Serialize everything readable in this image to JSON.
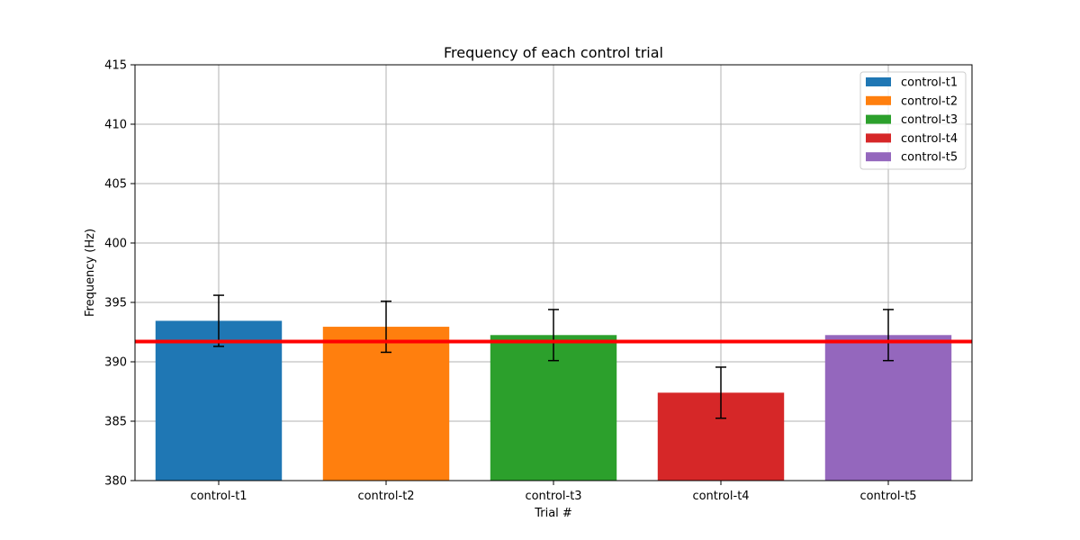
{
  "chart_data": {
    "type": "bar",
    "title": "Frequency of each control trial",
    "xlabel": "Trial #",
    "ylabel": "Frequency (Hz)",
    "ylim": [
      380,
      415
    ],
    "yticks": [
      "380",
      "385",
      "390",
      "395",
      "400",
      "405",
      "410",
      "415"
    ],
    "categories": [
      "control-t1",
      "control-t2",
      "control-t3",
      "control-t4",
      "control-t5"
    ],
    "values": [
      393.45,
      392.95,
      392.25,
      387.4,
      392.25
    ],
    "errors": [
      2.15,
      2.15,
      2.15,
      2.15,
      2.15
    ],
    "colors": [
      "#1f77b4",
      "#ff7f0e",
      "#2ca02c",
      "#d62728",
      "#9467bd"
    ],
    "reference_line": {
      "value": 391.7,
      "color": "#ff0000"
    },
    "legend": {
      "placement": "top-right",
      "entries": [
        "control-t1",
        "control-t2",
        "control-t3",
        "control-t4",
        "control-t5"
      ]
    },
    "grid": true
  }
}
